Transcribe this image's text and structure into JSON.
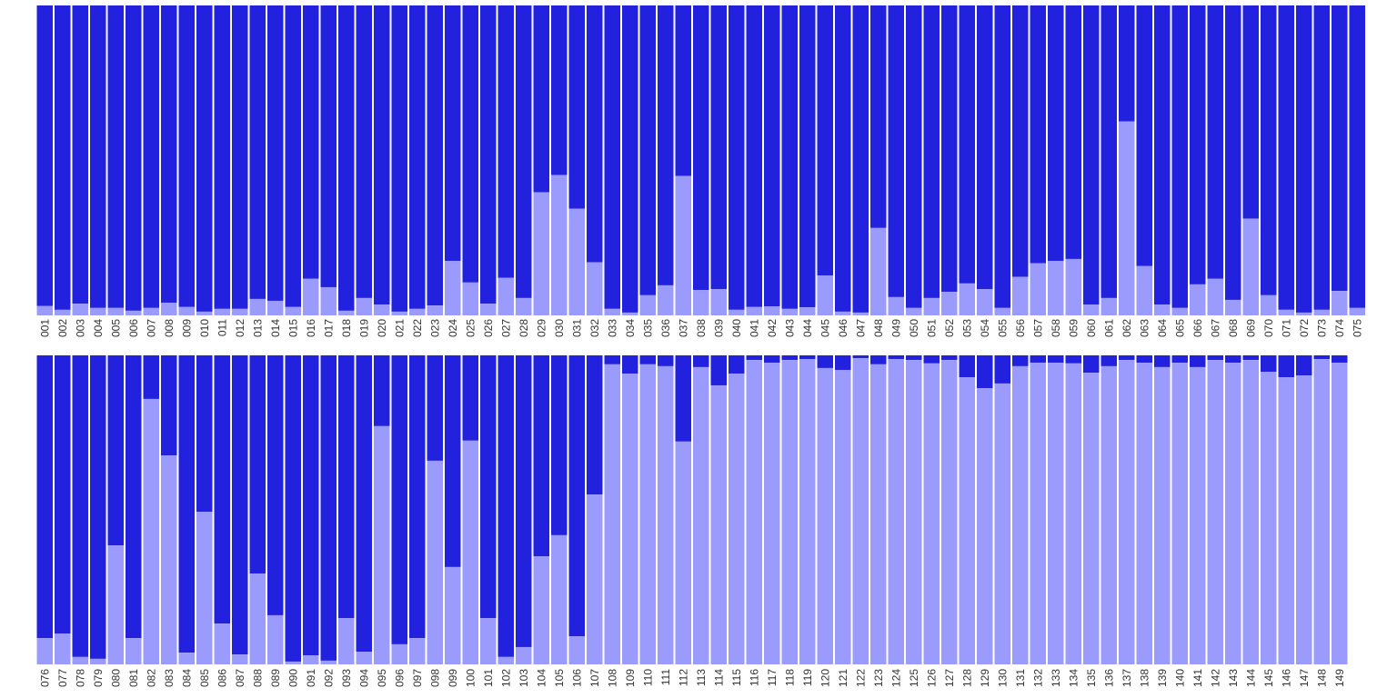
{
  "chart_data": [
    {
      "type": "bar",
      "stacked": true,
      "normalized": true,
      "ylim": [
        0,
        1
      ],
      "grid": false,
      "legend": "none",
      "colors": {
        "lower": "#9B9BFD",
        "upper": "#2121DE"
      },
      "categories": [
        "001",
        "002",
        "003",
        "004",
        "005",
        "006",
        "007",
        "008",
        "009",
        "010",
        "011",
        "012",
        "013",
        "014",
        "015",
        "016",
        "017",
        "018",
        "019",
        "020",
        "021",
        "022",
        "023",
        "024",
        "025",
        "026",
        "027",
        "028",
        "029",
        "030",
        "031",
        "032",
        "033",
        "034",
        "035",
        "036",
        "037",
        "038",
        "039",
        "040",
        "041",
        "042",
        "043",
        "044",
        "045",
        "046",
        "047",
        "048",
        "049",
        "050",
        "051",
        "052",
        "053",
        "054",
        "055",
        "056",
        "057",
        "058",
        "059",
        "060",
        "061",
        "062",
        "063",
        "064",
        "065",
        "066",
        "067",
        "068",
        "069",
        "070",
        "071",
        "072",
        "073",
        "074",
        "075"
      ],
      "lower_fraction": [
        0.03,
        0.018,
        0.038,
        0.024,
        0.024,
        0.015,
        0.024,
        0.041,
        0.027,
        0.012,
        0.021,
        0.021,
        0.053,
        0.047,
        0.027,
        0.118,
        0.091,
        0.015,
        0.056,
        0.035,
        0.012,
        0.021,
        0.032,
        0.176,
        0.106,
        0.038,
        0.121,
        0.056,
        0.397,
        0.453,
        0.344,
        0.171,
        0.021,
        0.009,
        0.065,
        0.097,
        0.45,
        0.082,
        0.085,
        0.018,
        0.027,
        0.029,
        0.021,
        0.026,
        0.129,
        0.012,
        0.009,
        0.282,
        0.059,
        0.024,
        0.056,
        0.076,
        0.103,
        0.085,
        0.024,
        0.124,
        0.168,
        0.176,
        0.182,
        0.035,
        0.056,
        0.626,
        0.159,
        0.035,
        0.024,
        0.1,
        0.118,
        0.05,
        0.312,
        0.065,
        0.018,
        0.009,
        0.018,
        0.079,
        0.024
      ]
    },
    {
      "type": "bar",
      "stacked": true,
      "normalized": true,
      "ylim": [
        0,
        1
      ],
      "grid": false,
      "legend": "none",
      "colors": {
        "lower": "#9B9BFD",
        "upper": "#2121DE"
      },
      "categories": [
        "076",
        "077",
        "078",
        "079",
        "080",
        "081",
        "082",
        "083",
        "084",
        "085",
        "086",
        "087",
        "088",
        "089",
        "090",
        "091",
        "092",
        "093",
        "094",
        "095",
        "096",
        "097",
        "098",
        "099",
        "100",
        "101",
        "102",
        "103",
        "104",
        "105",
        "106",
        "107",
        "108",
        "109",
        "110",
        "111",
        "112",
        "113",
        "114",
        "115",
        "116",
        "117",
        "118",
        "119",
        "120",
        "121",
        "122",
        "123",
        "124",
        "125",
        "126",
        "127",
        "128",
        "129",
        "130",
        "131",
        "132",
        "133",
        "134",
        "135",
        "136",
        "137",
        "138",
        "139",
        "140",
        "141",
        "142",
        "143",
        "144",
        "145",
        "146",
        "147",
        "148",
        "149"
      ],
      "lower_fraction": [
        0.085,
        0.1,
        0.024,
        0.018,
        0.385,
        0.085,
        0.859,
        0.676,
        0.038,
        0.494,
        0.132,
        0.032,
        0.294,
        0.159,
        0.009,
        0.029,
        0.012,
        0.15,
        0.041,
        0.771,
        0.065,
        0.085,
        0.659,
        0.315,
        0.724,
        0.15,
        0.024,
        0.056,
        0.35,
        0.418,
        0.091,
        0.55,
        0.971,
        0.941,
        0.971,
        0.965,
        0.721,
        0.962,
        0.903,
        0.941,
        0.985,
        0.976,
        0.985,
        0.988,
        0.959,
        0.953,
        0.991,
        0.971,
        0.988,
        0.985,
        0.974,
        0.985,
        0.929,
        0.894,
        0.909,
        0.965,
        0.976,
        0.976,
        0.974,
        0.944,
        0.965,
        0.985,
        0.976,
        0.962,
        0.976,
        0.962,
        0.985,
        0.976,
        0.985,
        0.947,
        0.929,
        0.935,
        0.988,
        0.976
      ]
    }
  ]
}
